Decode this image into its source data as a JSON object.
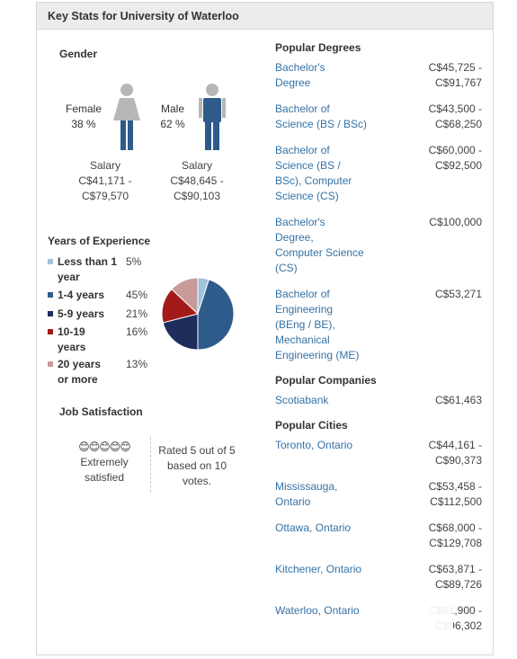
{
  "header": {
    "title": "Key Stats for University of Waterloo"
  },
  "gender": {
    "title": "Gender",
    "female": {
      "label": "Female",
      "pct": "38 %",
      "salary_label": "Salary",
      "salary_low": "C$41,171 -",
      "salary_high": "C$79,570"
    },
    "male": {
      "label": "Male",
      "pct": "62 %",
      "salary_label": "Salary",
      "salary_low": "C$48,645 -",
      "salary_high": "C$90,103"
    }
  },
  "experience": {
    "title": "Years of Experience",
    "items": [
      {
        "label": "Less than 1 year",
        "pct": "5%",
        "color": "#9fc3dc"
      },
      {
        "label": "1-4 years",
        "pct": "45%",
        "color": "#2e5b8a"
      },
      {
        "label": "5-9 years",
        "pct": "21%",
        "color": "#1f2d5a"
      },
      {
        "label": "10-19 years",
        "pct": "16%",
        "color": "#a31a1a"
      },
      {
        "label": "20 years or more",
        "pct": "13%",
        "color": "#c99a9a"
      }
    ]
  },
  "chart_data": {
    "type": "pie",
    "categories": [
      "Less than 1 year",
      "1-4 years",
      "5-9 years",
      "10-19 years",
      "20 years or more"
    ],
    "values": [
      5,
      45,
      21,
      16,
      13
    ],
    "colors": [
      "#9fc3dc",
      "#2e5b8a",
      "#1f2d5a",
      "#a31a1a",
      "#c99a9a"
    ]
  },
  "satisfaction": {
    "title": "Job Satisfaction",
    "faces": "😊😊😊😊😊",
    "level_line1": "Extremely",
    "level_line2": "satisfied",
    "rating_line1": "Rated 5 out of 5",
    "rating_line2": "based on 10",
    "rating_line3": "votes."
  },
  "degrees": {
    "title": "Popular Degrees",
    "items": [
      {
        "lines": [
          "Bachelor's",
          "Degree"
        ],
        "salary": [
          "C$45,725 -",
          "C$91,767"
        ]
      },
      {
        "lines": [
          "Bachelor of",
          "Science (BS / BSc)"
        ],
        "salary": [
          "C$43,500 -",
          "C$68,250"
        ]
      },
      {
        "lines": [
          "Bachelor of",
          "Science (BS /",
          "BSc), Computer",
          "Science (CS)"
        ],
        "salary": [
          "C$60,000 -",
          "C$92,500"
        ]
      },
      {
        "lines": [
          "Bachelor's",
          "Degree,",
          "Computer Science",
          "(CS)"
        ],
        "salary": [
          "C$100,000"
        ]
      },
      {
        "lines": [
          "Bachelor of",
          "Engineering",
          "(BEng / BE),",
          "Mechanical",
          "Engineering (ME)"
        ],
        "salary": [
          "C$53,271"
        ]
      }
    ]
  },
  "companies": {
    "title": "Popular Companies",
    "items": [
      {
        "name": "Scotiabank",
        "salary": "C$61,463"
      }
    ]
  },
  "cities": {
    "title": "Popular Cities",
    "items": [
      {
        "lines": [
          "Toronto, Ontario"
        ],
        "salary": [
          "C$44,161 -",
          "C$90,373"
        ]
      },
      {
        "lines": [
          "Mississauga,",
          "Ontario"
        ],
        "salary": [
          "C$53,458 -",
          "C$112,500"
        ]
      },
      {
        "lines": [
          "Ottawa, Ontario"
        ],
        "salary": [
          "C$68,000 -",
          "C$129,708"
        ]
      },
      {
        "lines": [
          "Kitchener, Ontario"
        ],
        "salary": [
          "C$63,871 -",
          "C$89,726"
        ]
      },
      {
        "lines": [
          "Waterloo, Ontario"
        ],
        "salary": [
          "C$61,900 -",
          "C$96,302"
        ]
      }
    ]
  }
}
